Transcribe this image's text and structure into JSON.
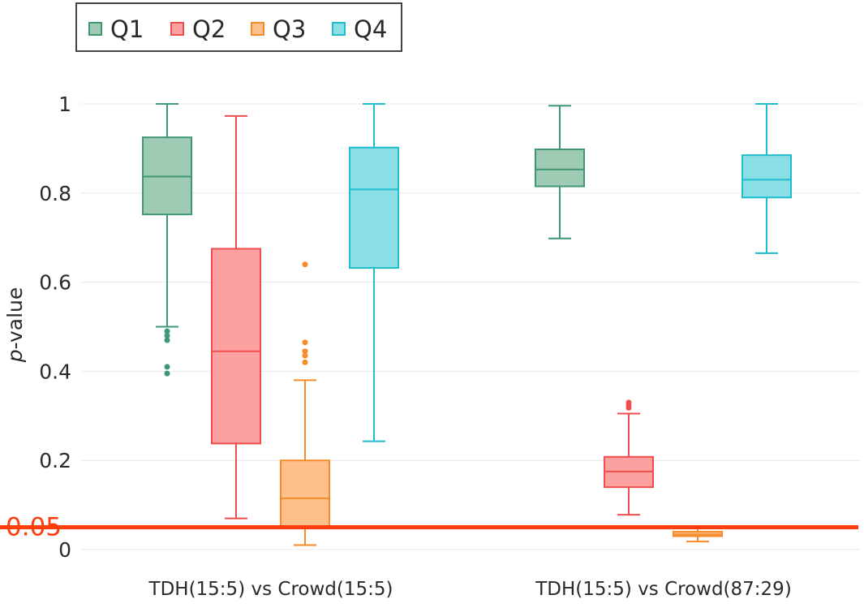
{
  "chart_data": {
    "type": "box",
    "title": "",
    "xlabel": "",
    "ylabel": "p-value",
    "ylabel_italic_part": "p",
    "ylabel_rest": "-value",
    "ylim": [
      -0.02,
      1.05
    ],
    "yticks": [
      0,
      0.2,
      0.4,
      0.6,
      0.8,
      1
    ],
    "ytick_labels": [
      "0",
      "0.2",
      "0.4",
      "0.6",
      "0.8",
      "1"
    ],
    "grid": true,
    "legend_position": "top-left",
    "categories": [
      "TDH(15:5) vs Crowd(15:5)",
      "TDH(15:5) vs Crowd(87:29)"
    ],
    "threshold": {
      "value": 0.05,
      "label": "0.05",
      "color": "#ff3d0d"
    },
    "series": [
      {
        "name": "Q1",
        "stroke": "#3f9874",
        "fill": "#9fcbb5",
        "boxes": [
          {
            "min": 0.5,
            "q1": 0.752,
            "median": 0.837,
            "q3": 0.925,
            "max": 1.0,
            "outliers": [
              0.49,
              0.48,
              0.47,
              0.41,
              0.395
            ]
          },
          {
            "min": 0.698,
            "q1": 0.815,
            "median": 0.853,
            "q3": 0.898,
            "max": 0.996,
            "outliers": []
          }
        ]
      },
      {
        "name": "Q2",
        "stroke": "#ef4e4e",
        "fill": "#fda0a0",
        "boxes": [
          {
            "min": 0.07,
            "q1": 0.238,
            "median": 0.445,
            "q3": 0.675,
            "max": 0.973,
            "outliers": []
          },
          {
            "min": 0.078,
            "q1": 0.14,
            "median": 0.175,
            "q3": 0.208,
            "max": 0.305,
            "outliers": [
              0.33,
              0.325,
              0.318
            ]
          }
        ]
      },
      {
        "name": "Q3",
        "stroke": "#f68c29",
        "fill": "#ffc08c",
        "boxes": [
          {
            "min": 0.01,
            "q1": 0.05,
            "median": 0.115,
            "q3": 0.2,
            "max": 0.38,
            "outliers": [
              0.64,
              0.465,
              0.445,
              0.435,
              0.42
            ]
          },
          {
            "min": 0.018,
            "q1": 0.03,
            "median": 0.034,
            "q3": 0.04,
            "max": 0.048,
            "outliers": []
          }
        ]
      },
      {
        "name": "Q4",
        "stroke": "#1fbccc",
        "fill": "#8adfe6",
        "boxes": [
          {
            "min": 0.243,
            "q1": 0.632,
            "median": 0.808,
            "q3": 0.902,
            "max": 1.0,
            "outliers": []
          },
          {
            "min": 0.665,
            "q1": 0.79,
            "median": 0.83,
            "q3": 0.885,
            "max": 1.0,
            "outliers": []
          }
        ]
      }
    ]
  }
}
